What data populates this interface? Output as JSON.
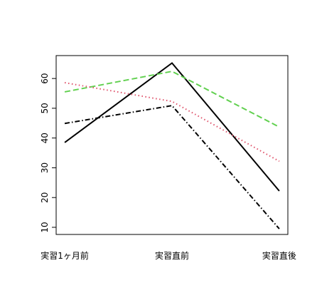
{
  "chart_data": {
    "type": "line",
    "categories": [
      "実習1ヶ月前",
      "実習直前",
      "実習直後"
    ],
    "series": [
      {
        "color": "#000000",
        "linestyle": "solid",
        "values": [
          38.5,
          65.2,
          22.2
        ]
      },
      {
        "color": "#61d04f",
        "linestyle": "dashed",
        "values": [
          55.5,
          62.4,
          43.7
        ]
      },
      {
        "color": "#df536b",
        "linestyle": "dotted",
        "values": [
          58.6,
          52.3,
          32.2
        ]
      },
      {
        "color": "#000000",
        "linestyle": "dashdot",
        "values": [
          44.9,
          50.9,
          9.5
        ]
      }
    ],
    "ylim": [
      7.6,
      67.7
    ],
    "yticks": [
      10,
      20,
      30,
      40,
      50,
      60
    ],
    "grid": false
  }
}
